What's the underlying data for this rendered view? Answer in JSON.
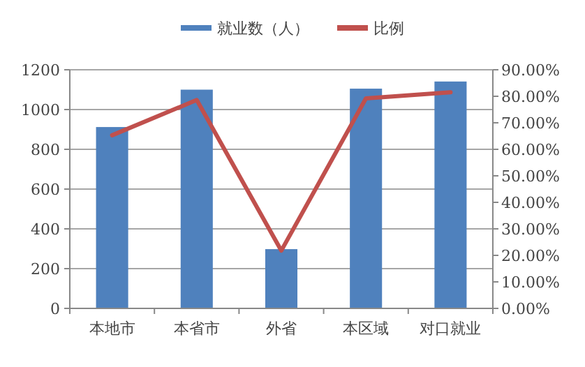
{
  "chart_data": {
    "type": "bar",
    "categories": [
      "本地市",
      "本省市",
      "外省",
      "本区域",
      "对口就业"
    ],
    "series": [
      {
        "name": "就业数（人）",
        "color": "#4f81bd",
        "values": [
          912,
          1100,
          298,
          1105,
          1141
        ]
      },
      {
        "name": "比例",
        "type": "line",
        "axis": "y2",
        "color": "#c0504d",
        "values": [
          65.3,
          78.6,
          21.8,
          79.2,
          81.5
        ]
      }
    ],
    "ylim": [
      0,
      1200
    ],
    "yticks": [
      0,
      200,
      400,
      600,
      800,
      1000,
      1200
    ],
    "y2lim": [
      0,
      90
    ],
    "y2ticks": [
      {
        "value": 0,
        "label": "0.00%"
      },
      {
        "value": 10,
        "label": "10.00%"
      },
      {
        "value": 20,
        "label": "20.00%"
      },
      {
        "value": 30,
        "label": "30.00%"
      },
      {
        "value": 40,
        "label": "40.00%"
      },
      {
        "value": 50,
        "label": "50.00%"
      },
      {
        "value": 60,
        "label": "60.00%"
      },
      {
        "value": 70,
        "label": "70.00%"
      },
      {
        "value": 80,
        "label": "80.00%"
      },
      {
        "value": 90,
        "label": "90.00%"
      }
    ],
    "grid": "y",
    "legend": "top",
    "marker": "none"
  }
}
